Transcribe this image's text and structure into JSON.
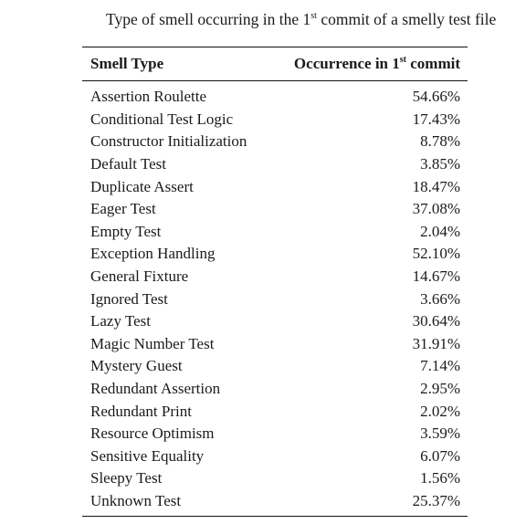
{
  "caption": {
    "prefix": "Type of smell occurring in the 1",
    "sup": "st",
    "suffix": " commit of a smelly test file"
  },
  "table": {
    "header": {
      "smell_type": "Smell Type",
      "occurrence_prefix": "Occurrence in 1",
      "occurrence_sup": "st",
      "occurrence_suffix": " commit"
    },
    "rows": [
      {
        "smell": "Assertion Roulette",
        "occurrence": "54.66%"
      },
      {
        "smell": "Conditional Test Logic",
        "occurrence": "17.43%"
      },
      {
        "smell": "Constructor Initialization",
        "occurrence": "8.78%"
      },
      {
        "smell": "Default Test",
        "occurrence": "3.85%"
      },
      {
        "smell": "Duplicate Assert",
        "occurrence": "18.47%"
      },
      {
        "smell": "Eager Test",
        "occurrence": "37.08%"
      },
      {
        "smell": "Empty Test",
        "occurrence": "2.04%"
      },
      {
        "smell": "Exception Handling",
        "occurrence": "52.10%"
      },
      {
        "smell": "General Fixture",
        "occurrence": "14.67%"
      },
      {
        "smell": "Ignored Test",
        "occurrence": "3.66%"
      },
      {
        "smell": "Lazy Test",
        "occurrence": "30.64%"
      },
      {
        "smell": "Magic Number Test",
        "occurrence": "31.91%"
      },
      {
        "smell": "Mystery Guest",
        "occurrence": "7.14%"
      },
      {
        "smell": "Redundant Assertion",
        "occurrence": "2.95%"
      },
      {
        "smell": "Redundant Print",
        "occurrence": "2.02%"
      },
      {
        "smell": "Resource Optimism",
        "occurrence": "3.59%"
      },
      {
        "smell": "Sensitive Equality",
        "occurrence": "6.07%"
      },
      {
        "smell": "Sleepy Test",
        "occurrence": "1.56%"
      },
      {
        "smell": "Unknown Test",
        "occurrence": "25.37%"
      }
    ]
  }
}
